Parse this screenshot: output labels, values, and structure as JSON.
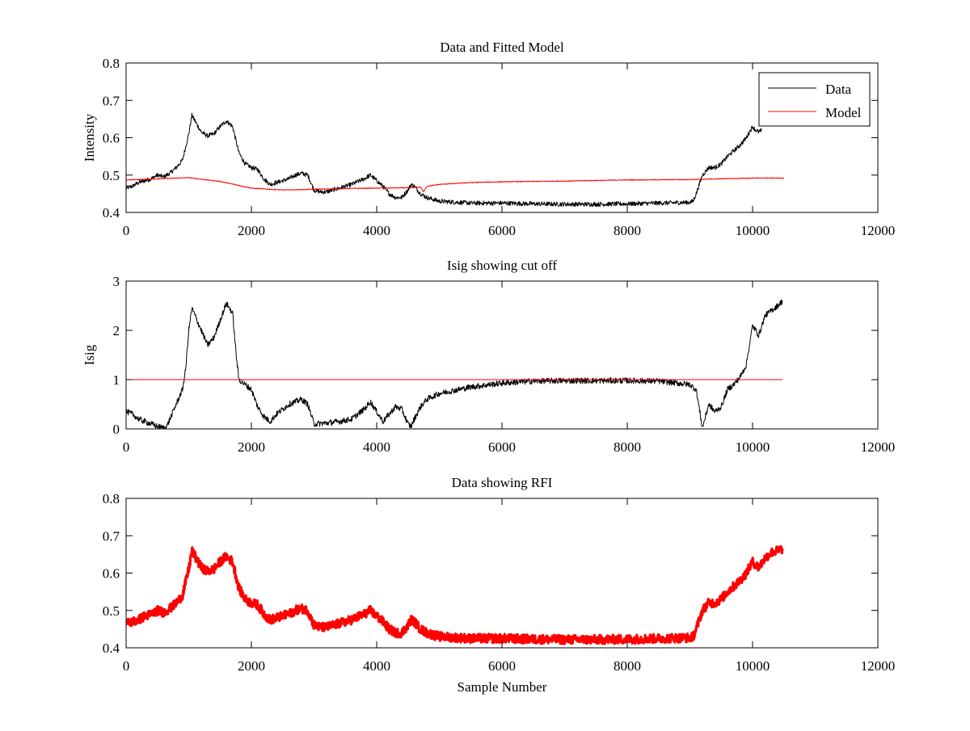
{
  "chart_data": [
    {
      "type": "line",
      "title": "Data and Fitted Model",
      "xlabel": "",
      "ylabel": "Intensity",
      "xlim": [
        0,
        12000
      ],
      "ylim": [
        0.4,
        0.8
      ],
      "xticks": [
        0,
        2000,
        4000,
        6000,
        8000,
        10000,
        12000
      ],
      "yticks": [
        0.4,
        0.5,
        0.6,
        0.7,
        0.8
      ],
      "ytick_labels": [
        "0.4",
        "0.5",
        "0.6",
        "0.7",
        "0.8"
      ],
      "grid": false,
      "legend": {
        "placement": "top-right",
        "entries": [
          "Data",
          "Model"
        ]
      },
      "series": [
        {
          "name": "Data",
          "color": "#000000",
          "noise": 0.006,
          "x": [
            0,
            100,
            200,
            300,
            400,
            500,
            600,
            700,
            800,
            900,
            1000,
            1050,
            1100,
            1200,
            1300,
            1400,
            1500,
            1600,
            1700,
            1800,
            1900,
            2000,
            2100,
            2200,
            2300,
            2400,
            2500,
            2600,
            2700,
            2800,
            2900,
            2950,
            3000,
            3100,
            3200,
            3400,
            3600,
            3800,
            3900,
            4000,
            4100,
            4200,
            4300,
            4400,
            4500,
            4550,
            4600,
            4700,
            4800,
            5000,
            5500,
            6000,
            6500,
            7000,
            7500,
            8000,
            8500,
            9000,
            9050,
            9100,
            9200,
            9300,
            9400,
            9500,
            9600,
            9700,
            9800,
            9900,
            10000,
            10050,
            10100,
            10150
          ],
          "y": [
            0.465,
            0.47,
            0.48,
            0.485,
            0.49,
            0.5,
            0.495,
            0.505,
            0.52,
            0.54,
            0.61,
            0.66,
            0.645,
            0.615,
            0.605,
            0.61,
            0.63,
            0.645,
            0.63,
            0.56,
            0.53,
            0.52,
            0.515,
            0.49,
            0.475,
            0.48,
            0.485,
            0.49,
            0.5,
            0.505,
            0.5,
            0.48,
            0.46,
            0.455,
            0.455,
            0.465,
            0.475,
            0.49,
            0.5,
            0.485,
            0.47,
            0.45,
            0.44,
            0.44,
            0.46,
            0.475,
            0.47,
            0.45,
            0.44,
            0.43,
            0.425,
            0.425,
            0.423,
            0.422,
            0.422,
            0.423,
            0.425,
            0.427,
            0.43,
            0.45,
            0.5,
            0.52,
            0.52,
            0.53,
            0.55,
            0.565,
            0.58,
            0.6,
            0.63,
            0.62,
            0.615,
            0.62
          ]
        },
        {
          "name": "Model",
          "color": "#ff0000",
          "noise": 0.001,
          "x": [
            0,
            500,
            1000,
            1500,
            2000,
            2500,
            3000,
            3500,
            4000,
            4500,
            4700,
            4750,
            4800,
            5000,
            5500,
            6000,
            7000,
            8000,
            9000,
            9500,
            10000,
            10500
          ],
          "y": [
            0.487,
            0.49,
            0.493,
            0.483,
            0.465,
            0.46,
            0.462,
            0.464,
            0.465,
            0.466,
            0.468,
            0.455,
            0.47,
            0.475,
            0.48,
            0.482,
            0.484,
            0.487,
            0.488,
            0.49,
            0.492,
            0.492
          ]
        }
      ]
    },
    {
      "type": "line",
      "title": "Isig showing cut off",
      "xlabel": "",
      "ylabel": "Isig",
      "xlim": [
        0,
        12000
      ],
      "ylim": [
        0,
        3
      ],
      "xticks": [
        0,
        2000,
        4000,
        6000,
        8000,
        10000,
        12000
      ],
      "yticks": [
        0,
        1,
        2,
        3
      ],
      "ytick_labels": [
        "0",
        "1",
        "2",
        "3"
      ],
      "grid": false,
      "series": [
        {
          "color": "#000000",
          "noise": 0.06,
          "x": [
            0,
            100,
            200,
            300,
            400,
            500,
            600,
            650,
            700,
            800,
            900,
            950,
            1000,
            1050,
            1100,
            1200,
            1300,
            1400,
            1500,
            1600,
            1700,
            1750,
            1800,
            1900,
            2000,
            2100,
            2200,
            2300,
            2400,
            2500,
            2600,
            2700,
            2800,
            2900,
            2950,
            3000,
            3200,
            3400,
            3600,
            3800,
            3900,
            4000,
            4100,
            4200,
            4300,
            4400,
            4500,
            4550,
            4600,
            4700,
            4800,
            5000,
            5500,
            6000,
            6500,
            7000,
            7500,
            8000,
            8500,
            9000,
            9100,
            9200,
            9300,
            9400,
            9500,
            9600,
            9700,
            9800,
            9900,
            10000,
            10100,
            10200,
            10300,
            10400,
            10480
          ],
          "y": [
            0.35,
            0.3,
            0.2,
            0.15,
            0.1,
            0.05,
            0.02,
            0.05,
            0.2,
            0.5,
            0.8,
            1.2,
            2.0,
            2.45,
            2.3,
            2.0,
            1.7,
            1.85,
            2.2,
            2.55,
            2.35,
            1.6,
            1.0,
            0.9,
            0.8,
            0.45,
            0.25,
            0.15,
            0.3,
            0.4,
            0.5,
            0.55,
            0.6,
            0.5,
            0.3,
            0.1,
            0.12,
            0.15,
            0.2,
            0.4,
            0.55,
            0.35,
            0.15,
            0.3,
            0.45,
            0.4,
            0.1,
            0.05,
            0.2,
            0.45,
            0.6,
            0.72,
            0.85,
            0.93,
            0.97,
            0.98,
            0.98,
            0.98,
            0.97,
            0.9,
            0.8,
            0.02,
            0.5,
            0.35,
            0.45,
            0.8,
            0.9,
            1.05,
            1.3,
            2.1,
            1.9,
            2.3,
            2.4,
            2.5,
            2.6
          ]
        },
        {
          "color": "#ff0000",
          "noise": 0,
          "x": [
            0,
            10480
          ],
          "y": [
            1,
            1
          ]
        }
      ]
    },
    {
      "type": "line",
      "title": "Data showing RFI",
      "xlabel": "Sample Number",
      "ylabel": "",
      "xlim": [
        0,
        12000
      ],
      "ylim": [
        0.4,
        0.8
      ],
      "xticks": [
        0,
        2000,
        4000,
        6000,
        8000,
        10000,
        12000
      ],
      "yticks": [
        0.4,
        0.5,
        0.6,
        0.7,
        0.8
      ],
      "ytick_labels": [
        "0.4",
        "0.5",
        "0.6",
        "0.7",
        "0.8"
      ],
      "grid": false,
      "series": [
        {
          "color": "#ff0000",
          "noise": 0.012,
          "x": [
            0,
            100,
            200,
            300,
            400,
            500,
            600,
            700,
            800,
            900,
            1000,
            1050,
            1100,
            1200,
            1300,
            1400,
            1500,
            1600,
            1700,
            1800,
            1900,
            2000,
            2100,
            2200,
            2300,
            2400,
            2500,
            2600,
            2700,
            2800,
            2900,
            2950,
            3000,
            3100,
            3200,
            3400,
            3600,
            3800,
            3900,
            4000,
            4100,
            4200,
            4300,
            4400,
            4500,
            4550,
            4600,
            4700,
            4800,
            5000,
            5500,
            6000,
            6500,
            7000,
            7500,
            8000,
            8500,
            9000,
            9050,
            9100,
            9200,
            9300,
            9400,
            9500,
            9600,
            9700,
            9800,
            9900,
            10000,
            10100,
            10200,
            10300,
            10400,
            10480
          ],
          "y": [
            0.465,
            0.47,
            0.475,
            0.485,
            0.49,
            0.5,
            0.495,
            0.505,
            0.52,
            0.54,
            0.61,
            0.66,
            0.645,
            0.615,
            0.605,
            0.61,
            0.63,
            0.645,
            0.63,
            0.56,
            0.53,
            0.52,
            0.515,
            0.49,
            0.475,
            0.48,
            0.485,
            0.49,
            0.5,
            0.505,
            0.5,
            0.48,
            0.46,
            0.455,
            0.455,
            0.465,
            0.475,
            0.49,
            0.5,
            0.485,
            0.47,
            0.45,
            0.44,
            0.44,
            0.46,
            0.475,
            0.47,
            0.45,
            0.44,
            0.43,
            0.425,
            0.425,
            0.423,
            0.422,
            0.422,
            0.423,
            0.425,
            0.427,
            0.43,
            0.45,
            0.5,
            0.52,
            0.52,
            0.53,
            0.55,
            0.565,
            0.58,
            0.6,
            0.63,
            0.615,
            0.64,
            0.655,
            0.66,
            0.665
          ]
        }
      ]
    }
  ]
}
